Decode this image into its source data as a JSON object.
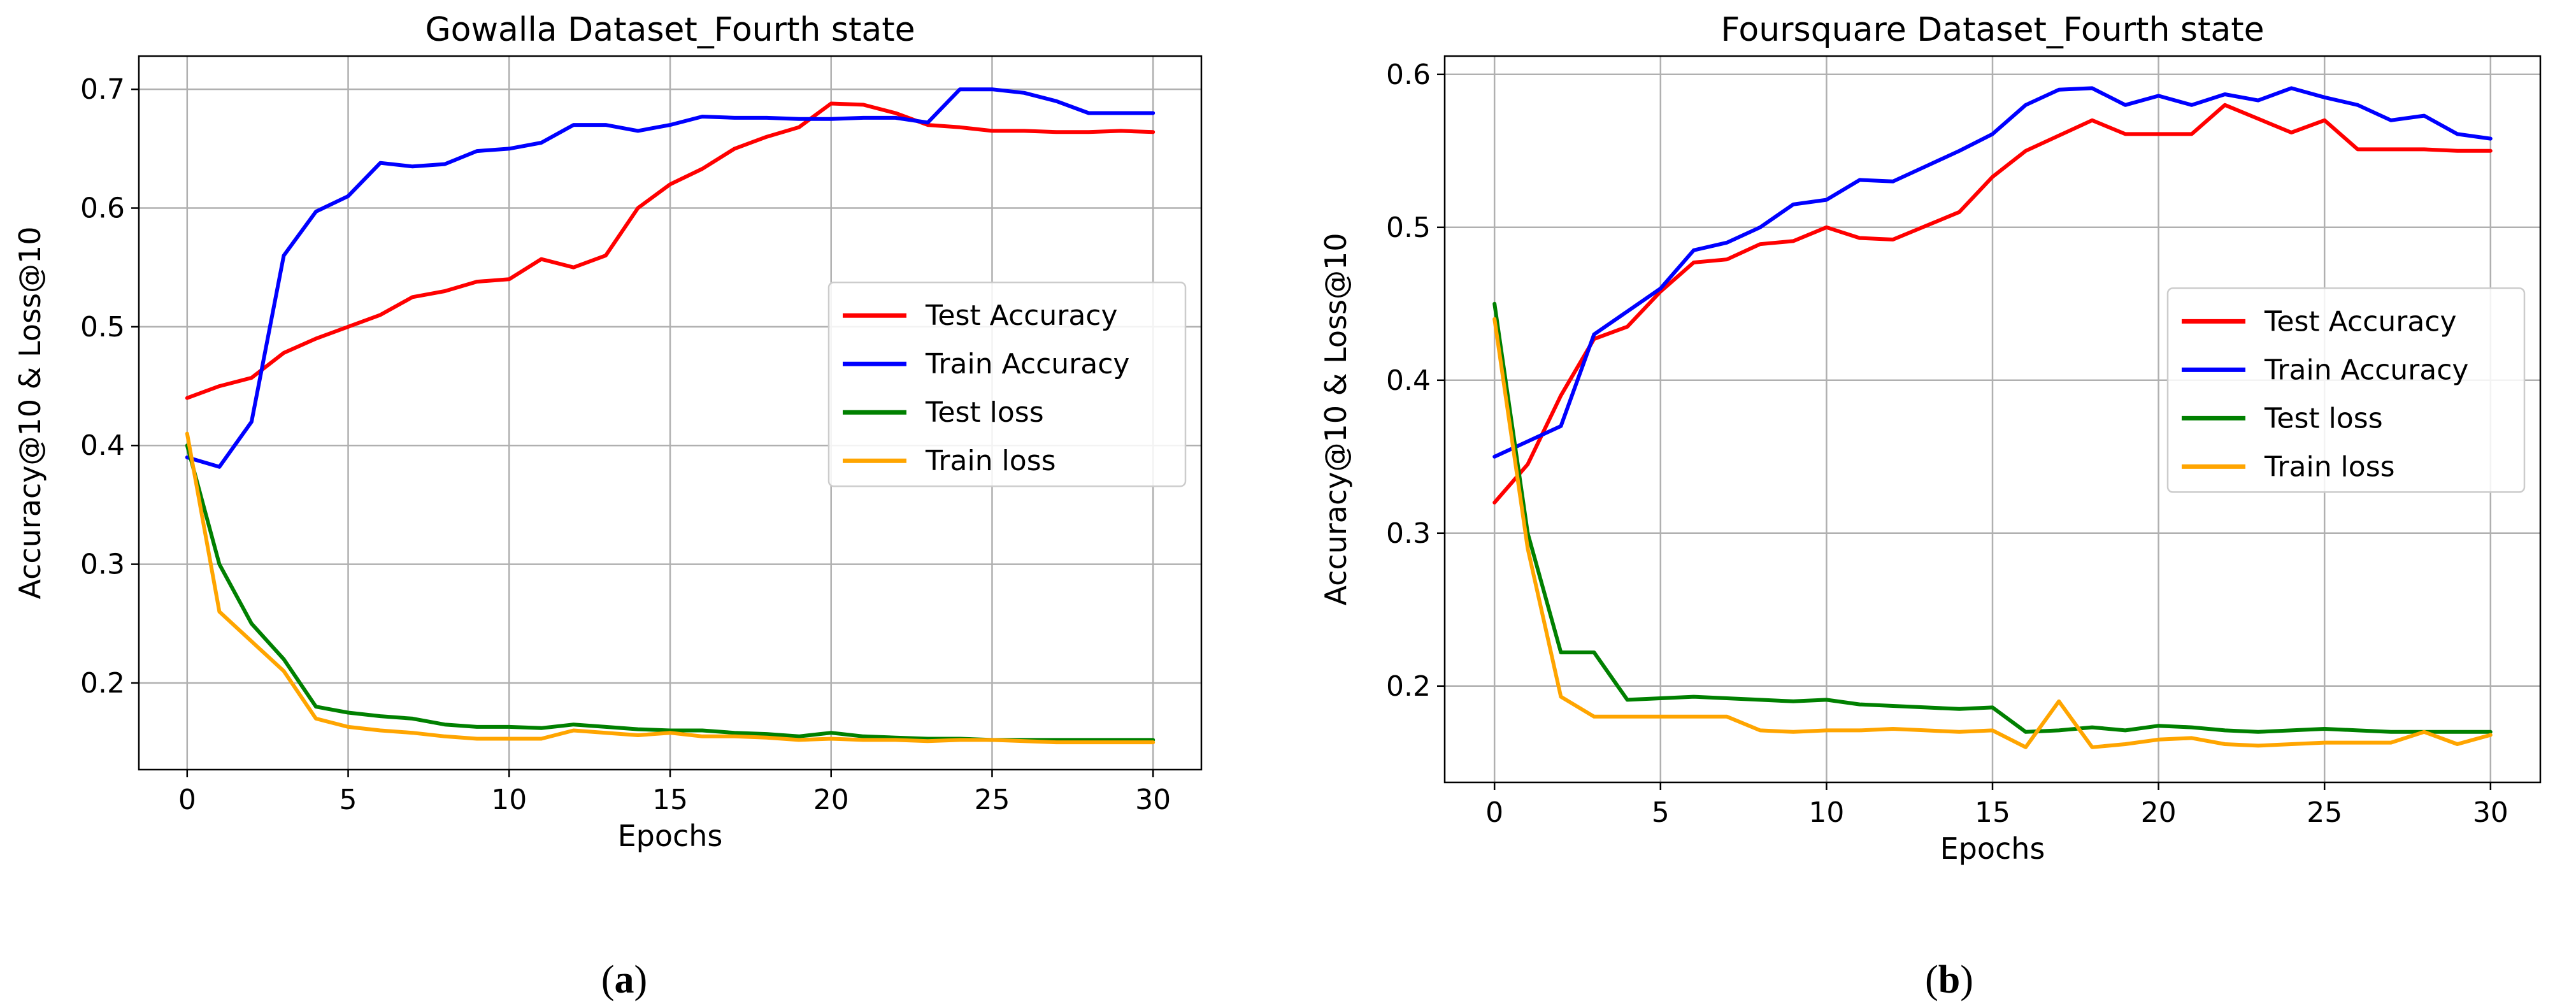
{
  "panel_labels": [
    "a",
    "b"
  ],
  "chart_data": [
    {
      "type": "line",
      "title": "Gowalla Dataset_Fourth state",
      "xlabel": "Epochs",
      "ylabel": "Accuracy@10 & Loss@10",
      "xlim": [
        -1.5,
        31.5
      ],
      "ylim": [
        0.127,
        0.728
      ],
      "xticks": [
        0,
        5,
        10,
        15,
        20,
        25,
        30
      ],
      "yticks": [
        0.2,
        0.3,
        0.4,
        0.5,
        0.6,
        0.7
      ],
      "ytick_labels": [
        "0.2",
        "0.3",
        "0.4",
        "0.5",
        "0.6",
        "0.7"
      ],
      "grid": true,
      "legend_position": "center-right",
      "x": [
        0,
        1,
        2,
        3,
        4,
        5,
        6,
        7,
        8,
        9,
        10,
        11,
        12,
        13,
        14,
        15,
        16,
        17,
        18,
        19,
        20,
        21,
        22,
        23,
        24,
        25,
        26,
        27,
        28,
        29,
        30
      ],
      "series": [
        {
          "name": "Test Accuracy",
          "color": "#ff0000",
          "values": [
            0.44,
            0.45,
            0.457,
            0.478,
            0.49,
            0.5,
            0.51,
            0.525,
            0.53,
            0.538,
            0.54,
            0.557,
            0.55,
            0.56,
            0.6,
            0.62,
            0.633,
            0.65,
            0.66,
            0.668,
            0.688,
            0.687,
            0.68,
            0.67,
            0.668,
            0.665,
            0.665,
            0.664,
            0.664,
            0.665,
            0.664
          ]
        },
        {
          "name": "Train Accuracy",
          "color": "#0000ff",
          "values": [
            0.39,
            0.382,
            0.42,
            0.56,
            0.597,
            0.61,
            0.638,
            0.635,
            0.637,
            0.648,
            0.65,
            0.655,
            0.67,
            0.67,
            0.665,
            0.67,
            0.677,
            0.676,
            0.676,
            0.675,
            0.675,
            0.676,
            0.676,
            0.672,
            0.7,
            0.7,
            0.697,
            0.69,
            0.68,
            0.68,
            0.68
          ]
        },
        {
          "name": "Test loss",
          "color": "#008000",
          "values": [
            0.4,
            0.3,
            0.25,
            0.22,
            0.18,
            0.175,
            0.172,
            0.17,
            0.165,
            0.163,
            0.163,
            0.162,
            0.165,
            0.163,
            0.161,
            0.16,
            0.16,
            0.158,
            0.157,
            0.155,
            0.158,
            0.155,
            0.154,
            0.153,
            0.153,
            0.152,
            0.152,
            0.152,
            0.152,
            0.152,
            0.152
          ]
        },
        {
          "name": "Train loss",
          "color": "#ffa500",
          "values": [
            0.41,
            0.26,
            0.235,
            0.21,
            0.17,
            0.163,
            0.16,
            0.158,
            0.155,
            0.153,
            0.153,
            0.153,
            0.16,
            0.158,
            0.156,
            0.158,
            0.155,
            0.155,
            0.154,
            0.152,
            0.153,
            0.152,
            0.152,
            0.151,
            0.152,
            0.152,
            0.151,
            0.15,
            0.15,
            0.15,
            0.15
          ]
        }
      ]
    },
    {
      "type": "line",
      "title": "Foursquare Dataset_Fourth state",
      "xlabel": "Epochs",
      "ylabel": "Accuracy@10 & Loss@10",
      "xlim": [
        -1.5,
        31.5
      ],
      "ylim": [
        0.137,
        0.612
      ],
      "xticks": [
        0,
        5,
        10,
        15,
        20,
        25,
        30
      ],
      "yticks": [
        0.2,
        0.3,
        0.4,
        0.5,
        0.6
      ],
      "ytick_labels": [
        "0.2",
        "0.3",
        "0.4",
        "0.5",
        "0.6"
      ],
      "grid": true,
      "legend_position": "center-right",
      "x": [
        0,
        1,
        2,
        3,
        4,
        5,
        6,
        7,
        8,
        9,
        10,
        11,
        12,
        13,
        14,
        15,
        16,
        17,
        18,
        19,
        20,
        21,
        22,
        23,
        24,
        25,
        26,
        27,
        28,
        29,
        30
      ],
      "series": [
        {
          "name": "Test Accuracy",
          "color": "#ff0000",
          "values": [
            0.32,
            0.345,
            0.39,
            0.427,
            0.435,
            0.458,
            0.477,
            0.479,
            0.489,
            0.491,
            0.5,
            0.493,
            0.492,
            0.501,
            0.51,
            0.533,
            0.55,
            0.56,
            0.57,
            0.561,
            0.561,
            0.561,
            0.58,
            0.571,
            0.562,
            0.57,
            0.551,
            0.551,
            0.551,
            0.55,
            0.55
          ]
        },
        {
          "name": "Train Accuracy",
          "color": "#0000ff",
          "values": [
            0.35,
            0.36,
            0.37,
            0.43,
            0.445,
            0.46,
            0.485,
            0.49,
            0.5,
            0.515,
            0.518,
            0.531,
            0.53,
            0.54,
            0.55,
            0.561,
            0.58,
            0.59,
            0.591,
            0.58,
            0.586,
            0.58,
            0.587,
            0.583,
            0.591,
            0.585,
            0.58,
            0.57,
            0.573,
            0.561,
            0.558
          ]
        },
        {
          "name": "Test loss",
          "color": "#008000",
          "values": [
            0.45,
            0.3,
            0.222,
            0.222,
            0.191,
            0.192,
            0.193,
            0.192,
            0.191,
            0.19,
            0.191,
            0.188,
            0.187,
            0.186,
            0.185,
            0.186,
            0.17,
            0.171,
            0.173,
            0.171,
            0.174,
            0.173,
            0.171,
            0.17,
            0.171,
            0.172,
            0.171,
            0.17,
            0.17,
            0.17,
            0.17
          ]
        },
        {
          "name": "Train loss",
          "color": "#ffa500",
          "values": [
            0.44,
            0.29,
            0.193,
            0.18,
            0.18,
            0.18,
            0.18,
            0.18,
            0.171,
            0.17,
            0.171,
            0.171,
            0.172,
            0.171,
            0.17,
            0.171,
            0.16,
            0.19,
            0.16,
            0.162,
            0.165,
            0.166,
            0.162,
            0.161,
            0.162,
            0.163,
            0.163,
            0.163,
            0.17,
            0.162,
            0.168
          ]
        }
      ]
    }
  ]
}
